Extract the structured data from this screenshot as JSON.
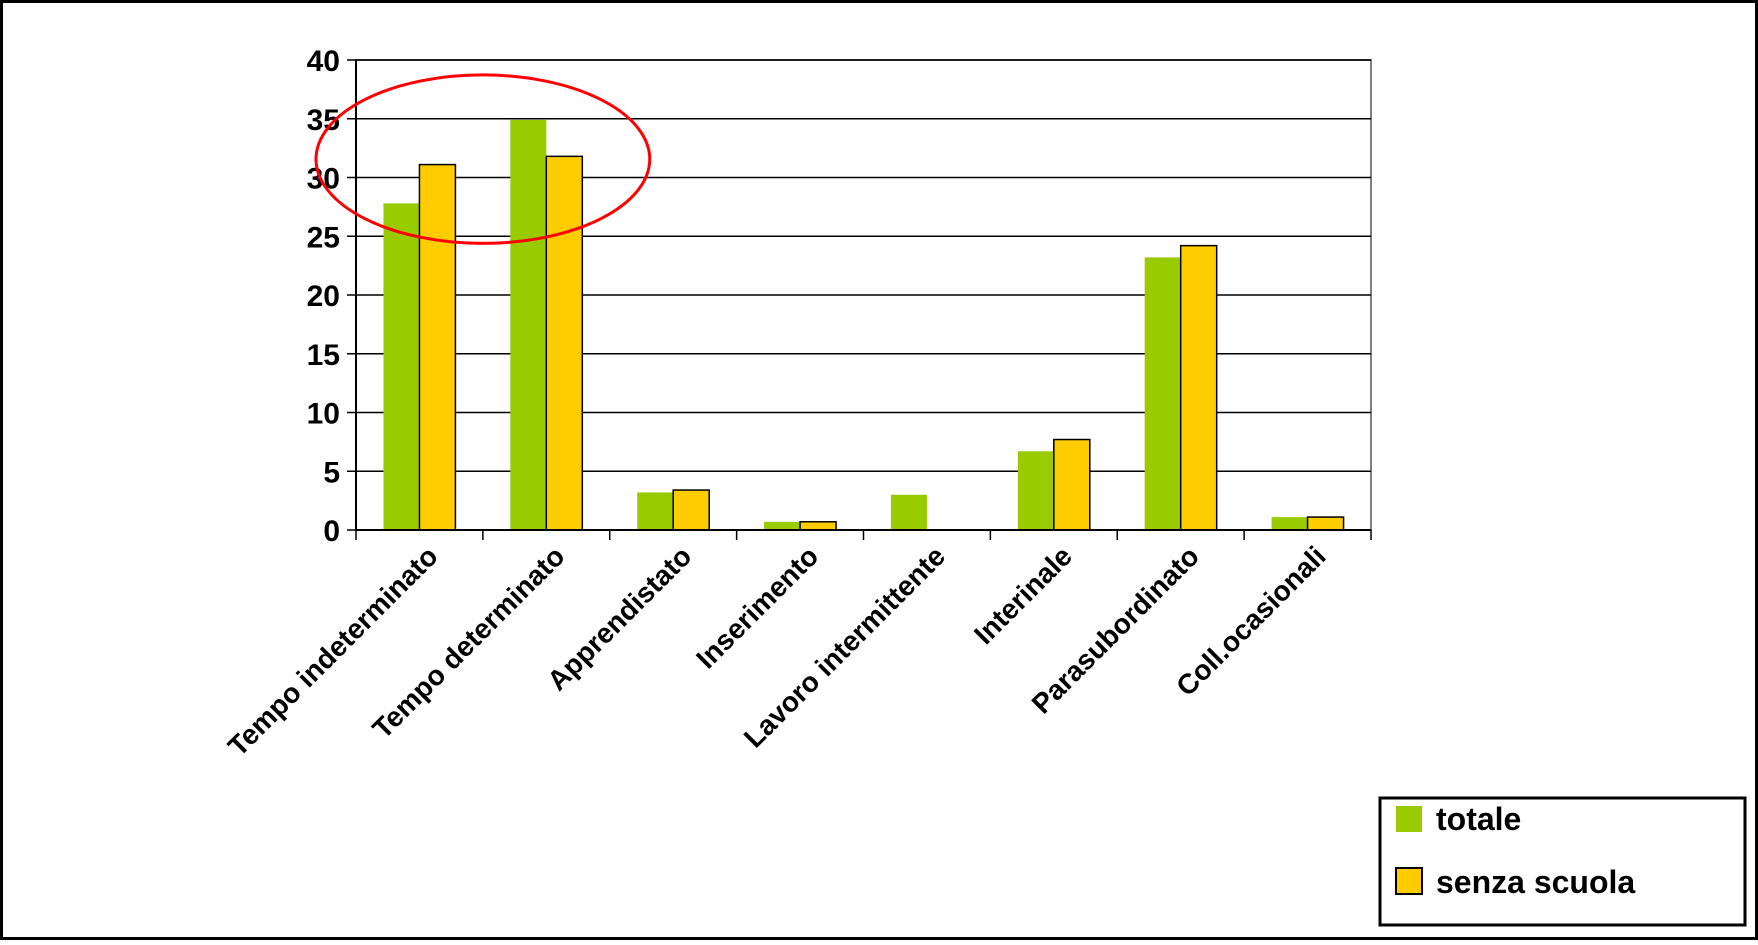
{
  "chart_data": {
    "type": "bar",
    "categories": [
      "Tempo indeterminato",
      "Tempo determinato",
      "Apprendistato",
      "Inserimento",
      "Lavoro intermittente",
      "Interinale",
      "Parasubordinato",
      "Coll.ocasionali"
    ],
    "series": [
      {
        "name": "totale",
        "color": "#99CC00",
        "values": [
          27.8,
          34.9,
          3.2,
          0.7,
          3.0,
          6.7,
          23.2,
          1.1
        ]
      },
      {
        "name": "senza scuola",
        "color": "#FFCC00",
        "values": [
          31.1,
          31.8,
          3.4,
          0.7,
          0,
          7.7,
          24.2,
          1.1
        ]
      }
    ],
    "yticks": [
      "0",
      "5",
      "10",
      "15",
      "20",
      "25",
      "30",
      "35",
      "40"
    ],
    "ylim": [
      0,
      40
    ],
    "grid": true,
    "legend": "bottom-right",
    "annotation": {
      "shape": "ellipse",
      "color": "#FF0000",
      "around": [
        "Tempo indeterminato",
        "Tempo determinato"
      ]
    }
  }
}
